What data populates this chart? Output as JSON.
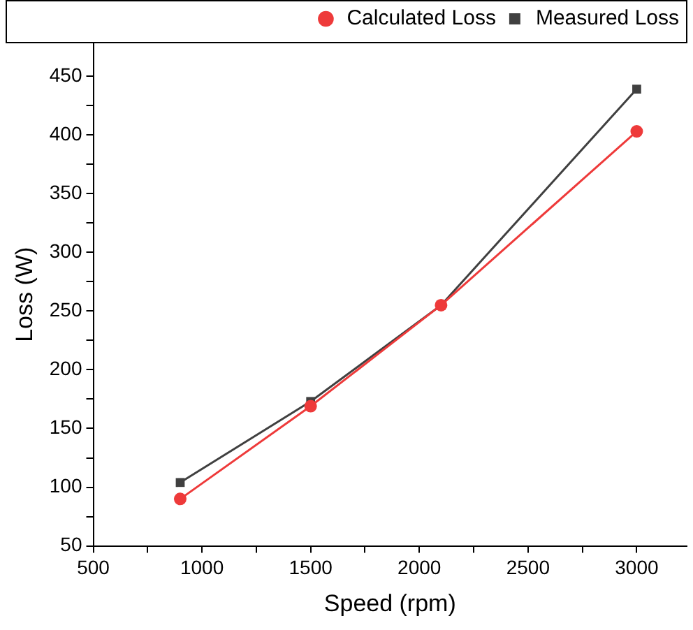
{
  "chart_data": {
    "type": "line",
    "xlabel": "Speed (rpm)",
    "ylabel": "Loss (W)",
    "x": [
      900,
      1500,
      2100,
      3000
    ],
    "series": [
      {
        "name": "Measured Loss",
        "color": "#404040",
        "marker": "square",
        "values": [
          104,
          173,
          255,
          439
        ]
      },
      {
        "name": "Calculated Loss",
        "color": "#ee3a3a",
        "marker": "circle",
        "values": [
          90,
          169,
          255,
          403
        ]
      }
    ],
    "xlim": [
      500,
      3230
    ],
    "xticks": [
      500,
      {
        "value": 750,
        "label": null
      },
      1000,
      {
        "value": 1250,
        "label": null
      },
      1500,
      {
        "value": 1750,
        "label": null
      },
      2000,
      {
        "value": 2250,
        "label": null
      },
      2500,
      {
        "value": 2750,
        "label": null
      },
      3000
    ],
    "ylim": [
      50,
      478
    ],
    "yticks": [
      50,
      {
        "value": 75,
        "label": null
      },
      100,
      {
        "value": 125,
        "label": null
      },
      150,
      {
        "value": 175,
        "label": null
      },
      200,
      {
        "value": 225,
        "label": null
      },
      250,
      {
        "value": 275,
        "label": null
      },
      300,
      {
        "value": 325,
        "label": null
      },
      350,
      {
        "value": 375,
        "label": null
      },
      400,
      {
        "value": 425,
        "label": null
      },
      450
    ],
    "grid": false,
    "legend": "top right",
    "line_style": "solid"
  }
}
